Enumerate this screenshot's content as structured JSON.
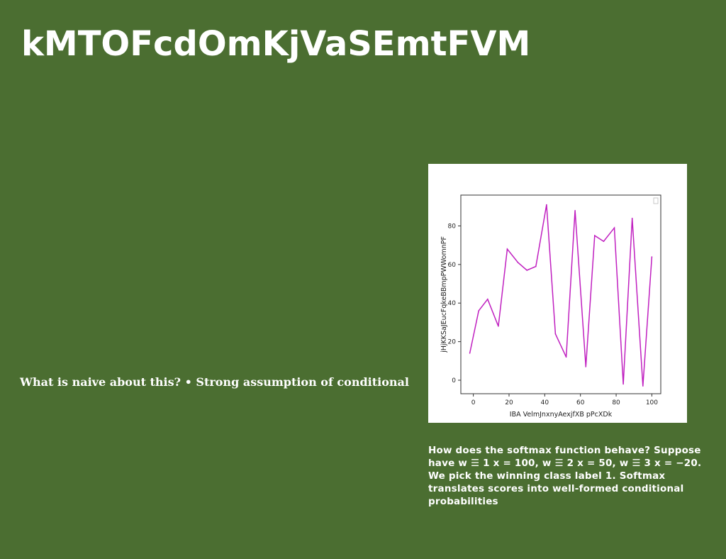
{
  "slide": {
    "title": "kMTOFcdOmKjVaSEmtFVM",
    "left_text": "What is naive about this? • Strong assumption of conditional",
    "caption": "How does the softmax function behave? Suppose have w ☰ 1 x = 100, w ☰ 2 x = 50, w ☰ 3 x = −20. We pick the winning class label 1. Softmax translates scores into well-formed conditional probabilities",
    "background_color": "#4b6e31",
    "text_color": "#ffffff"
  },
  "chart_data": {
    "type": "line",
    "title": "",
    "xlabel": "IBA VelmJnxnyAexjfXB pPcXDk",
    "ylabel": "jHjKKSaJEucFqkeBBmpPWWomnPF",
    "x": [
      -2,
      3,
      8,
      14,
      19,
      25,
      30,
      35,
      41,
      46,
      52,
      57,
      63,
      68,
      73,
      79,
      84,
      89,
      95,
      100
    ],
    "series": [
      {
        "name": "",
        "color": "#c020c0",
        "values": [
          14,
          36,
          42,
          28,
          68,
          61,
          57,
          59,
          91,
          24,
          12,
          88,
          7,
          75,
          72,
          79,
          -2,
          84,
          -3,
          64
        ]
      }
    ],
    "xlim": [
      -7,
      105
    ],
    "ylim": [
      -7,
      96
    ],
    "xticks": [
      0,
      20,
      40,
      60,
      80,
      100
    ],
    "yticks": [
      0,
      20,
      40,
      60,
      80
    ],
    "grid": false,
    "legend": "top-right (empty)"
  }
}
